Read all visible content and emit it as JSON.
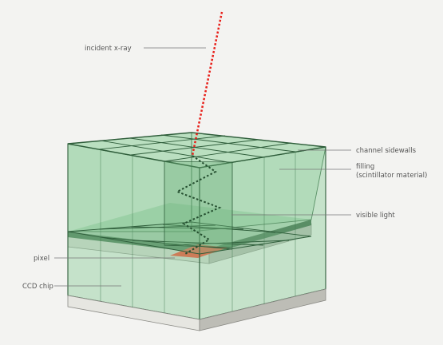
{
  "labels": {
    "incident": "incident x-ray",
    "sidewalls": "channel sidewalls",
    "filling_1": "filling",
    "filling_2": "(scintillator material)",
    "visible": "visible light",
    "pixel": "pixel",
    "ccd": "CCD chip"
  },
  "colors": {
    "background": "#f3f3f1",
    "wall_fill": "#8fcf9c",
    "edge": "#2e5d3a",
    "chip": "#e6e6e1",
    "pixel": "#ff3a22",
    "xray": "#e8201a",
    "light": "#234d2e"
  }
}
